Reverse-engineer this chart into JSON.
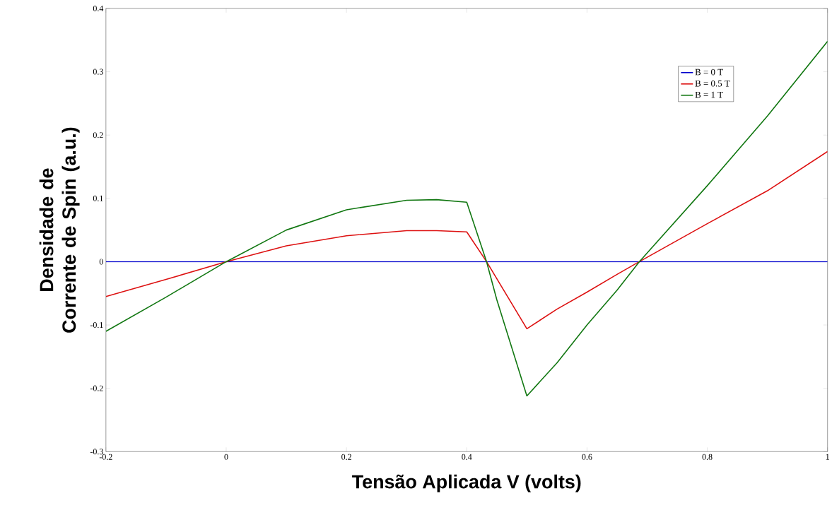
{
  "chart_data": {
    "type": "line",
    "xlabel": "Tensão Aplicada V (volts)",
    "ylabel": "Densidade de Corrente de Spin (a.u.)",
    "xlim": [
      -0.2,
      1
    ],
    "ylim": [
      -0.3,
      0.4
    ],
    "xticks": [
      -0.2,
      0,
      0.2,
      0.4,
      0.6,
      0.8,
      1
    ],
    "yticks": [
      -0.3,
      -0.2,
      -0.1,
      0,
      0.1,
      0.2,
      0.3,
      0.4
    ],
    "grid": false,
    "legend": "top right",
    "marker": "none",
    "line_style": "solid",
    "series": [
      {
        "name": "B =   0 T",
        "color": "#0000cc",
        "x": [
          -0.2,
          1
        ],
        "values": [
          0,
          0
        ]
      },
      {
        "name": "B = 0.5 T",
        "color": "#dd1111",
        "x": [
          -0.2,
          -0.1,
          0,
          0.1,
          0.2,
          0.3,
          0.35,
          0.4,
          0.433,
          0.5,
          0.55,
          0.6,
          0.65,
          0.687,
          0.8,
          0.9,
          1
        ],
        "values": [
          -0.055,
          -0.028,
          0,
          0.025,
          0.041,
          0.049,
          0.049,
          0.047,
          0,
          -0.106,
          -0.075,
          -0.048,
          -0.02,
          0,
          0.06,
          0.112,
          0.174
        ]
      },
      {
        "name": "B =   1 T",
        "color": "#117711",
        "x": [
          -0.2,
          -0.1,
          0,
          0.1,
          0.2,
          0.3,
          0.35,
          0.4,
          0.433,
          0.45,
          0.5,
          0.55,
          0.6,
          0.65,
          0.687,
          0.8,
          0.9,
          1
        ],
        "values": [
          -0.11,
          -0.056,
          0,
          0.05,
          0.082,
          0.097,
          0.098,
          0.094,
          0,
          -0.06,
          -0.212,
          -0.16,
          -0.1,
          -0.045,
          0,
          0.12,
          0.23,
          0.348
        ]
      }
    ]
  }
}
